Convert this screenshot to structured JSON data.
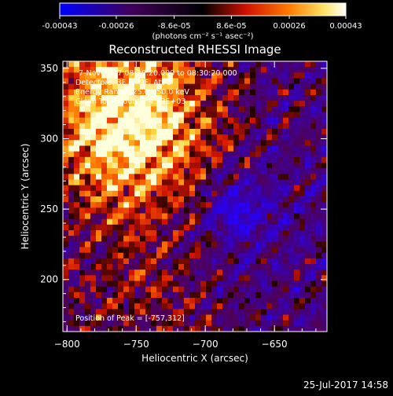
{
  "chart_data": {
    "type": "heatmap",
    "title": "Reconstructed RHESSI Image",
    "xlabel": "Heliocentric X (arcsec)",
    "ylabel": "Heliocentric Y (arcsec)",
    "xlim": [
      -803,
      -612
    ],
    "ylim": [
      163,
      355
    ],
    "x_ticks": [
      -800,
      -750,
      -700,
      -650
    ],
    "y_ticks": [
      200,
      250,
      300,
      350
    ],
    "colorbar": {
      "unit_label": "(photons cm⁻² s⁻¹ asec⁻²)",
      "range": [
        -0.00043,
        0.00043
      ],
      "tick_labels": [
        "-0.00043",
        "-0.00026",
        "-8.6e-05",
        "8.6e-05",
        "0.00026",
        "0.00043"
      ],
      "tick_values": [
        -0.00043,
        -0.00026,
        -8.6e-05,
        8.6e-05,
        0.00026,
        0.00043
      ]
    },
    "annotations": [
      "7-Nov-2017 08:20:20.000 to 08:30:20.000",
      "Detectors: 3F 6F 9F, Att 0",
      "Energy Range: 25.0 - 50.0 keV",
      "Clean   Total counts: 4.59E+03"
    ],
    "peak_label": "Position of Peak = [-757,312]",
    "peak": {
      "x": -757,
      "y": 312
    },
    "grid": false,
    "colors": {
      "background": "#000000",
      "foreground": "#ffffff"
    }
  },
  "footer": {
    "timestamp": "25-Jul-2017 14:58"
  }
}
